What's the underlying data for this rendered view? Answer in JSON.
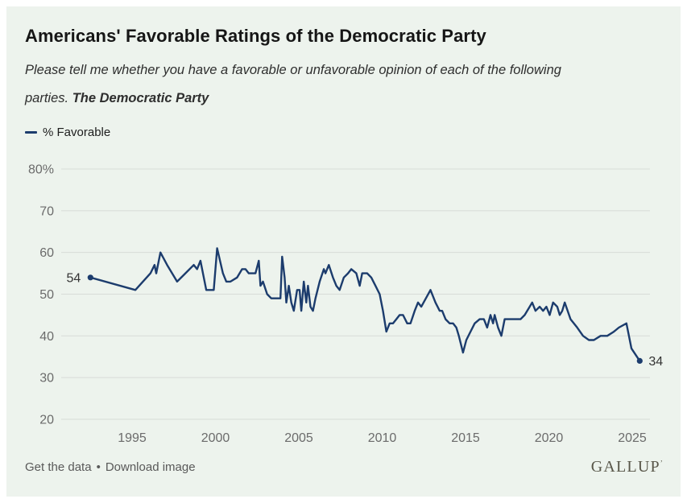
{
  "page": {
    "title": "Americans' Favorable Ratings of the Democratic Party",
    "subtitle_line1": "Please tell me whether you have a favorable or unfavorable opinion of each of the following",
    "subtitle_line2_regular": "parties. ",
    "subtitle_line2_bold": "The Democratic Party"
  },
  "legend": {
    "label": "% Favorable"
  },
  "footer": {
    "get_data_label": "Get the data",
    "separator": "•",
    "download_label": "Download image",
    "brand": "GALLUP",
    "brand_mark": "ʼ"
  },
  "colors": {
    "card_bg": "#edf3ed",
    "line": "#1c3c6d",
    "grid": "#d7dcd7",
    "axis_text": "#6b6b6b",
    "point_label_text": "#333333",
    "title_text": "#161616",
    "brand_text": "#585649"
  },
  "chart_data": {
    "type": "line",
    "title": "Americans' Favorable Ratings of the Democratic Party",
    "ylabel": "% Favorable",
    "xlabel": "",
    "ylim": [
      20,
      80
    ],
    "xlim": [
      1992,
      2026
    ],
    "grid": true,
    "legend_position": "top-left",
    "y_ticks": [
      {
        "value": 80,
        "label": "80%"
      },
      {
        "value": 70,
        "label": "70"
      },
      {
        "value": 60,
        "label": "60"
      },
      {
        "value": 50,
        "label": "50"
      },
      {
        "value": 40,
        "label": "40"
      },
      {
        "value": 30,
        "label": "30"
      },
      {
        "value": 20,
        "label": "20"
      }
    ],
    "x_ticks": [
      {
        "value": 1995,
        "label": "1995"
      },
      {
        "value": 2000,
        "label": "2000"
      },
      {
        "value": 2005,
        "label": "2005"
      },
      {
        "value": 2010,
        "label": "2010"
      },
      {
        "value": 2015,
        "label": "2015"
      },
      {
        "value": 2020,
        "label": "2020"
      },
      {
        "value": 2025,
        "label": "2025"
      }
    ],
    "point_labels": {
      "first": "54",
      "last": "34"
    },
    "series": [
      {
        "name": "% Favorable",
        "points": [
          [
            1992.5,
            54
          ],
          [
            1995.2,
            51
          ],
          [
            1996.1,
            55
          ],
          [
            1996.35,
            57
          ],
          [
            1996.45,
            55
          ],
          [
            1996.7,
            60
          ],
          [
            1997.1,
            57
          ],
          [
            1997.7,
            53
          ],
          [
            1998.2,
            55
          ],
          [
            1998.7,
            57
          ],
          [
            1998.9,
            56
          ],
          [
            1999.1,
            58
          ],
          [
            1999.45,
            51
          ],
          [
            1999.9,
            51
          ],
          [
            2000.1,
            61
          ],
          [
            2000.45,
            55
          ],
          [
            2000.65,
            53
          ],
          [
            2000.9,
            53
          ],
          [
            2001.3,
            54
          ],
          [
            2001.6,
            56
          ],
          [
            2001.8,
            56
          ],
          [
            2002.0,
            55
          ],
          [
            2002.4,
            55
          ],
          [
            2002.6,
            58
          ],
          [
            2002.7,
            52
          ],
          [
            2002.85,
            53
          ],
          [
            2003.1,
            50
          ],
          [
            2003.35,
            49
          ],
          [
            2003.65,
            49
          ],
          [
            2003.9,
            49
          ],
          [
            2004.0,
            59
          ],
          [
            2004.15,
            54
          ],
          [
            2004.25,
            48
          ],
          [
            2004.4,
            52
          ],
          [
            2004.55,
            48
          ],
          [
            2004.7,
            46
          ],
          [
            2004.9,
            51
          ],
          [
            2005.05,
            51
          ],
          [
            2005.15,
            46
          ],
          [
            2005.3,
            53
          ],
          [
            2005.45,
            48
          ],
          [
            2005.55,
            52
          ],
          [
            2005.7,
            47
          ],
          [
            2005.85,
            46
          ],
          [
            2006.0,
            49
          ],
          [
            2006.25,
            53
          ],
          [
            2006.5,
            56
          ],
          [
            2006.6,
            55
          ],
          [
            2006.8,
            57
          ],
          [
            2007.05,
            54
          ],
          [
            2007.25,
            52
          ],
          [
            2007.45,
            51
          ],
          [
            2007.7,
            54
          ],
          [
            2007.95,
            55
          ],
          [
            2008.15,
            56
          ],
          [
            2008.45,
            55
          ],
          [
            2008.65,
            52
          ],
          [
            2008.8,
            55
          ],
          [
            2009.1,
            55
          ],
          [
            2009.35,
            54
          ],
          [
            2009.6,
            52
          ],
          [
            2009.85,
            50
          ],
          [
            2010.05,
            46
          ],
          [
            2010.25,
            41
          ],
          [
            2010.45,
            43
          ],
          [
            2010.65,
            43
          ],
          [
            2010.85,
            44
          ],
          [
            2011.05,
            45
          ],
          [
            2011.25,
            45
          ],
          [
            2011.5,
            43
          ],
          [
            2011.7,
            43
          ],
          [
            2011.95,
            46
          ],
          [
            2012.15,
            48
          ],
          [
            2012.35,
            47
          ],
          [
            2012.9,
            51
          ],
          [
            2013.2,
            48
          ],
          [
            2013.45,
            46
          ],
          [
            2013.6,
            46
          ],
          [
            2013.8,
            44
          ],
          [
            2014.05,
            43
          ],
          [
            2014.25,
            43
          ],
          [
            2014.45,
            42
          ],
          [
            2014.6,
            40
          ],
          [
            2014.85,
            36
          ],
          [
            2015.05,
            39
          ],
          [
            2015.3,
            41
          ],
          [
            2015.55,
            43
          ],
          [
            2015.85,
            44
          ],
          [
            2016.1,
            44
          ],
          [
            2016.3,
            42
          ],
          [
            2016.5,
            45
          ],
          [
            2016.65,
            43
          ],
          [
            2016.75,
            45
          ],
          [
            2016.95,
            42
          ],
          [
            2017.15,
            40
          ],
          [
            2017.35,
            44
          ],
          [
            2017.8,
            44
          ],
          [
            2018.3,
            44
          ],
          [
            2018.55,
            45
          ],
          [
            2019.0,
            48
          ],
          [
            2019.2,
            46
          ],
          [
            2019.45,
            47
          ],
          [
            2019.65,
            46
          ],
          [
            2019.85,
            47
          ],
          [
            2020.05,
            45
          ],
          [
            2020.25,
            48
          ],
          [
            2020.5,
            47
          ],
          [
            2020.65,
            45
          ],
          [
            2020.8,
            46
          ],
          [
            2020.95,
            48
          ],
          [
            2021.3,
            44
          ],
          [
            2021.7,
            42
          ],
          [
            2022.05,
            40
          ],
          [
            2022.4,
            39
          ],
          [
            2022.7,
            39
          ],
          [
            2023.1,
            40
          ],
          [
            2023.5,
            40
          ],
          [
            2023.9,
            41
          ],
          [
            2024.2,
            42
          ],
          [
            2024.65,
            43
          ],
          [
            2024.95,
            37
          ],
          [
            2025.45,
            34
          ]
        ]
      }
    ]
  }
}
